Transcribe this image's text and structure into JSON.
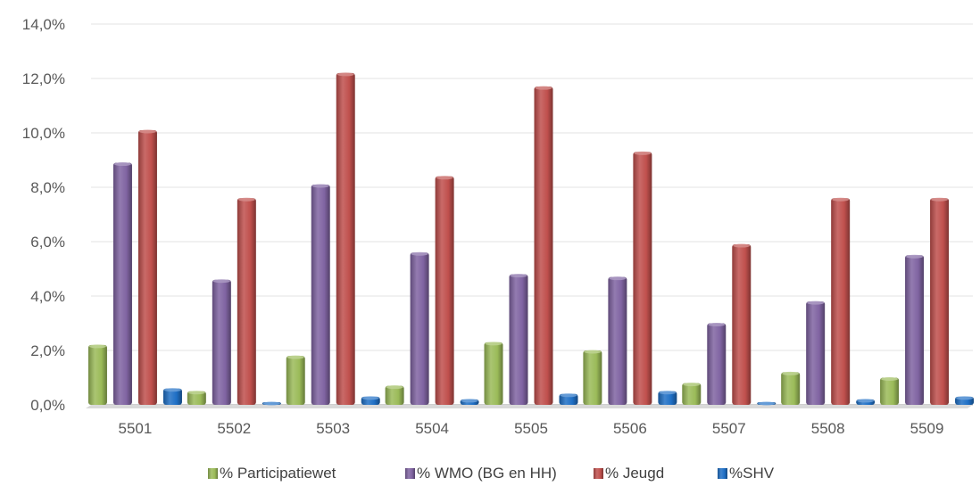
{
  "chart_data": {
    "type": "bar",
    "title": "",
    "xlabel": "",
    "ylabel": "",
    "categories": [
      "5501",
      "5502",
      "5503",
      "5504",
      "5505",
      "5506",
      "5507",
      "5508",
      "5509"
    ],
    "series": [
      {
        "name": "% Participatiewet",
        "color": "#9BBB59",
        "values": [
          2.2,
          0.5,
          1.8,
          0.7,
          2.3,
          2.0,
          0.8,
          1.2,
          1.0
        ]
      },
      {
        "name": "% WMO (BG en HH)",
        "color": "#8064A2",
        "values": [
          8.9,
          4.6,
          8.1,
          5.6,
          4.8,
          4.7,
          3.0,
          3.8,
          5.5
        ]
      },
      {
        "name": "% Jeugd",
        "color": "#C0504D",
        "values": [
          10.1,
          7.6,
          12.2,
          8.4,
          11.7,
          9.3,
          5.9,
          7.6,
          7.6
        ]
      },
      {
        "name": "%SHV",
        "color": "#1F6FC5",
        "values": [
          0.6,
          0.1,
          0.3,
          0.2,
          0.4,
          0.5,
          0.1,
          0.2,
          0.3
        ]
      }
    ],
    "ylim": [
      0,
      14
    ],
    "yticks": [
      "0,0%",
      "2,0%",
      "4,0%",
      "6,0%",
      "8,0%",
      "10,0%",
      "12,0%",
      "14,0%"
    ],
    "ytick_values": [
      0,
      2,
      4,
      6,
      8,
      10,
      12,
      14
    ],
    "grid": true,
    "legend_position": "bottom"
  }
}
